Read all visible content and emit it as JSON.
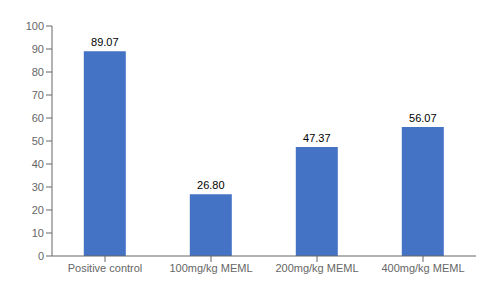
{
  "chart_data": {
    "type": "bar",
    "categories": [
      "Positive control",
      "100mg/kg MEML",
      "200mg/kg MEML",
      "400mg/kg MEML"
    ],
    "values": [
      89.07,
      26.8,
      47.37,
      56.07
    ],
    "value_labels": [
      "89.07",
      "26.80",
      "47.37",
      "56.07"
    ],
    "data_labels": true,
    "color": "#4472C4",
    "ylim": [
      0,
      100
    ],
    "yticks": [
      0,
      10,
      20,
      30,
      40,
      50,
      60,
      70,
      80,
      90,
      100
    ],
    "grid": false
  }
}
